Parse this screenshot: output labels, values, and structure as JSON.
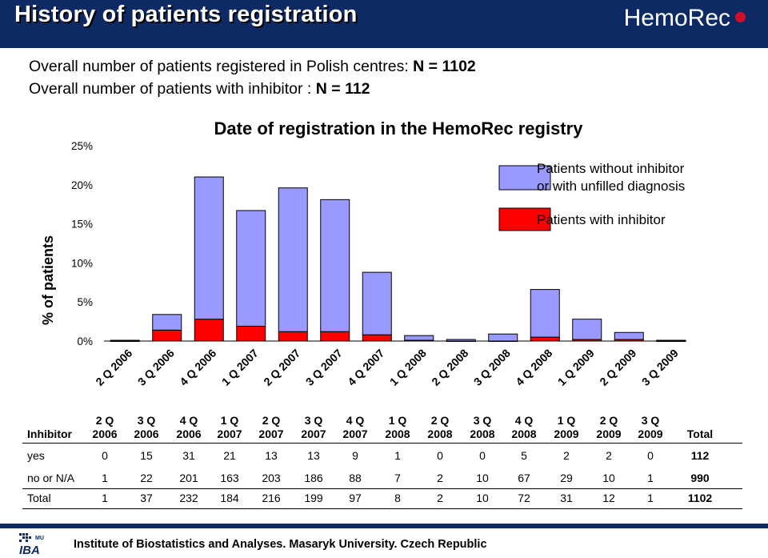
{
  "header": {
    "title": "History of patients registration",
    "logo_text": "HemoRec"
  },
  "summary": {
    "line1_text": "Overall number of patients registered in Polish centres: ",
    "line1_value": "N = 1102",
    "line2_text": "Overall number of patients with inhibitor : ",
    "line2_value": "N = 112"
  },
  "chart_data": {
    "type": "bar",
    "stacked": true,
    "title": "Date of registration in the HemoRec registry",
    "ylabel": "% of patients",
    "ylim": [
      0,
      25
    ],
    "yticks": [
      "0%",
      "5%",
      "10%",
      "15%",
      "20%",
      "25%"
    ],
    "grid": false,
    "legend_position": "top-right",
    "categories": [
      "2 Q 2006",
      "3 Q 2006",
      "4 Q 2006",
      "1 Q 2007",
      "2 Q 2007",
      "3 Q 2007",
      "4 Q 2007",
      "1 Q 2008",
      "2 Q 2008",
      "3 Q 2008",
      "4 Q 2008",
      "1 Q 2009",
      "2 Q 2009",
      "3 Q 2009"
    ],
    "series": [
      {
        "name": "Patients with inhibitor",
        "color": "#ff0000",
        "values": [
          0.0,
          1.4,
          2.8,
          1.9,
          1.2,
          1.2,
          0.8,
          0.1,
          0.0,
          0.0,
          0.5,
          0.2,
          0.2,
          0.0
        ]
      },
      {
        "name": "Patients without inhibitor or with unfilled diagnosis",
        "color": "#9999ff",
        "values": [
          0.1,
          2.0,
          18.2,
          14.8,
          18.4,
          16.9,
          8.0,
          0.6,
          0.2,
          0.9,
          6.1,
          2.6,
          0.9,
          0.1
        ]
      }
    ]
  },
  "colors": {
    "header_bg": "#0e2a64",
    "inhibitor": "#ff0000",
    "no_inhibitor": "#9999ff"
  },
  "table": {
    "corner_label": "Inhibitor",
    "columns": [
      {
        "q": "2 Q",
        "y": "2006"
      },
      {
        "q": "3 Q",
        "y": "2006"
      },
      {
        "q": "4 Q",
        "y": "2006"
      },
      {
        "q": "1 Q",
        "y": "2007"
      },
      {
        "q": "2 Q",
        "y": "2007"
      },
      {
        "q": "3 Q",
        "y": "2007"
      },
      {
        "q": "4 Q",
        "y": "2007"
      },
      {
        "q": "1 Q",
        "y": "2008"
      },
      {
        "q": "2 Q",
        "y": "2008"
      },
      {
        "q": "3 Q",
        "y": "2008"
      },
      {
        "q": "4 Q",
        "y": "2008"
      },
      {
        "q": "1 Q",
        "y": "2009"
      },
      {
        "q": "2 Q",
        "y": "2009"
      },
      {
        "q": "3 Q",
        "y": "2009"
      }
    ],
    "total_label": "Total",
    "rows": [
      {
        "label": "yes",
        "values": [
          "0",
          "15",
          "31",
          "21",
          "13",
          "13",
          "9",
          "1",
          "0",
          "0",
          "5",
          "2",
          "2",
          "0"
        ],
        "total": "112"
      },
      {
        "label": "no or N/A",
        "values": [
          "1",
          "22",
          "201",
          "163",
          "203",
          "186",
          "88",
          "7",
          "2",
          "10",
          "67",
          "29",
          "10",
          "1"
        ],
        "total": "990"
      },
      {
        "label": "Total",
        "values": [
          "1",
          "37",
          "232",
          "184",
          "216",
          "199",
          "97",
          "8",
          "2",
          "10",
          "72",
          "31",
          "12",
          "1"
        ],
        "total": "1102"
      }
    ]
  },
  "footer": {
    "text": "Institute of Biostatistics and Analyses. Masaryk University. Czech Republic",
    "logo_main": "IBA",
    "logo_small": "MU"
  }
}
